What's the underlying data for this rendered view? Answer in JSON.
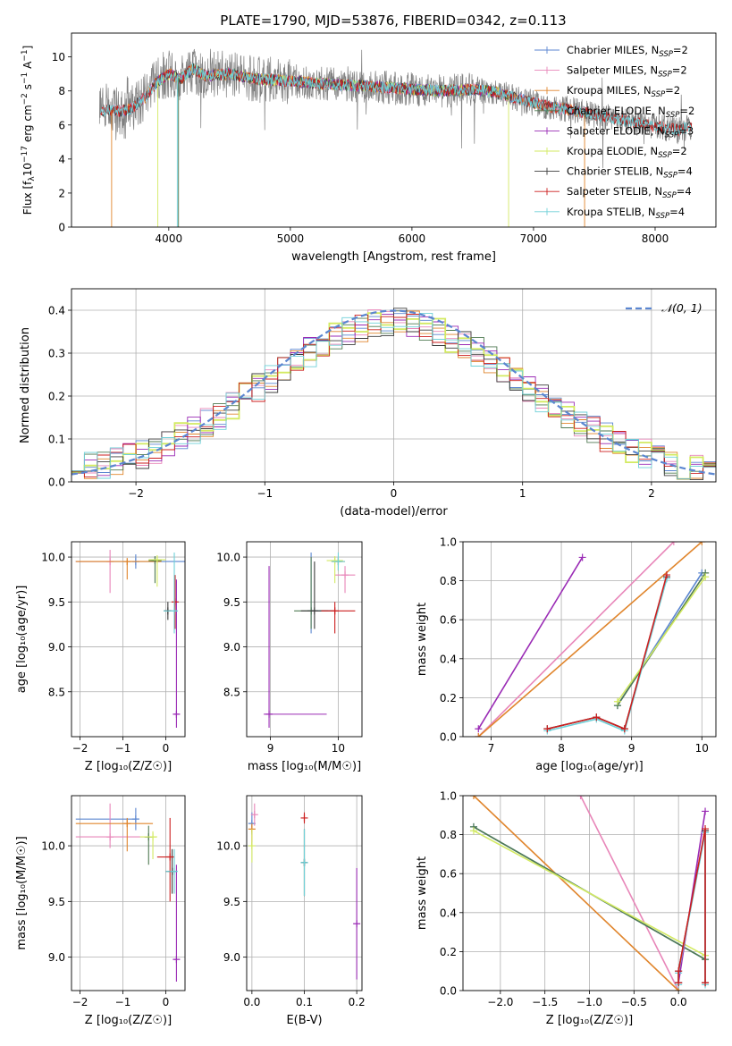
{
  "figure": {
    "suptitle": "PLATE=1790, MJD=53876, FIBERID=0342, z=0.113"
  },
  "colors": {
    "Chabrier MILES": "#5b86d0",
    "Salpeter MILES": "#e886b9",
    "Kroupa MILES": "#e0852c",
    "Chabrier ELODIE": "#4f7a52",
    "Salpeter ELODIE": "#9a2bb5",
    "Kroupa ELODIE": "#d3ea62",
    "Chabrier STELIB": "#3c3c3c",
    "Salpeter STELIB": "#cc1f1f",
    "Kroupa STELIB": "#6fd0d8",
    "data": "#808080",
    "normal": "#5b86d0"
  },
  "chart_data": [
    {
      "id": "spectrum",
      "type": "line",
      "xlabel": "wavelength [Angstrom, rest frame]",
      "ylabel_parts": [
        "Flux [f",
        "λ",
        "10",
        "−17",
        " erg cm",
        "−2",
        " s",
        "−1",
        " A",
        "−1",
        "]"
      ],
      "xlim": [
        3200,
        8500
      ],
      "ylim": [
        0,
        11.4
      ],
      "xticks": [
        4000,
        5000,
        6000,
        7000,
        8000
      ],
      "yticks": [
        0,
        2,
        4,
        6,
        8,
        10
      ],
      "grid": false,
      "legend_position": "right",
      "legend": [
        {
          "model": "Chabrier MILES",
          "pre": "Chabrier MILES, N",
          "sub": "SSP",
          "post": "=2"
        },
        {
          "model": "Salpeter MILES",
          "pre": "Salpeter MILES, N",
          "sub": "SSP",
          "post": "=2"
        },
        {
          "model": "Kroupa MILES",
          "pre": "Kroupa MILES, N",
          "sub": "SSP",
          "post": "=2"
        },
        {
          "model": "Chabrier ELODIE",
          "pre": "Chabrier ELODIE, N",
          "sub": "SSP",
          "post": "=2"
        },
        {
          "model": "Salpeter ELODIE",
          "pre": "Salpeter ELODIE, N",
          "sub": "SSP",
          "post": "=3"
        },
        {
          "model": "Kroupa ELODIE",
          "pre": "Kroupa ELODIE, N",
          "sub": "SSP",
          "post": "=2"
        },
        {
          "model": "Chabrier STELIB",
          "pre": "Chabrier STELIB, N",
          "sub": "SSP",
          "post": "=4"
        },
        {
          "model": "Salpeter STELIB",
          "pre": "Salpeter STELIB, N",
          "sub": "SSP",
          "post": "=4"
        },
        {
          "model": "Kroupa STELIB",
          "pre": "Kroupa STELIB, N",
          "sub": "SSP",
          "post": "=4"
        }
      ],
      "continuum": {
        "x": [
          3430,
          3500,
          3600,
          3700,
          3800,
          3900,
          4000,
          4100,
          4200,
          4300,
          4500,
          4700,
          5000,
          5300,
          5600,
          6000,
          6300,
          6500,
          6700,
          6900,
          7100,
          7300,
          7500,
          7800,
          8000,
          8200,
          8300
        ],
        "y": [
          6.8,
          6.9,
          6.8,
          7.0,
          7.6,
          8.5,
          9.0,
          8.7,
          9.3,
          8.9,
          9.0,
          8.7,
          8.6,
          8.4,
          8.3,
          8.1,
          8.0,
          8.1,
          7.9,
          7.5,
          7.1,
          6.9,
          6.6,
          6.2,
          5.9,
          5.7,
          5.9
        ]
      },
      "model_ranges": {
        "MILES": [
          3540,
          7420
        ],
        "ELODIE": [
          3900,
          6800
        ],
        "STELIB": [
          3440,
          8300
        ]
      },
      "absorption_features": [
        {
          "x": 3530,
          "model": "Kroupa MILES"
        },
        {
          "x": 3910,
          "model": "Kroupa ELODIE"
        },
        {
          "x": 4070,
          "model": "Kroupa STELIB"
        },
        {
          "x": 4080,
          "model": "Chabrier ELODIE"
        },
        {
          "x": 6795,
          "model": "Kroupa ELODIE"
        },
        {
          "x": 7420,
          "model": "Kroupa MILES"
        }
      ]
    },
    {
      "id": "residuals",
      "type": "line",
      "xlabel": "(data-model)/error",
      "ylabel": "Normed distribution",
      "xlim": [
        -2.5,
        2.5
      ],
      "ylim": [
        0,
        0.45
      ],
      "xticks": [
        -2,
        -1,
        0,
        1,
        2
      ],
      "yticks": [
        0.0,
        0.1,
        0.2,
        0.3,
        0.4
      ],
      "grid": true,
      "legend_position": "top-right",
      "legend_label": "𝒩(0, 1)",
      "bin_width": 0.1,
      "normal_curve": {
        "mean": 0,
        "sigma": 1
      }
    },
    {
      "id": "age_vs_Z",
      "type": "scatter",
      "xlabel": "Z [log₁₀(Z/Z☉)]",
      "ylabel": "age  [log₁₀(age/yr)]",
      "xlim": [
        -2.2,
        0.45
      ],
      "ylim": [
        8.0,
        10.17
      ],
      "xticks": [
        -2,
        -1,
        0
      ],
      "yticks": [
        8.5,
        9.0,
        9.5,
        10.0
      ],
      "grid": true,
      "points": [
        {
          "model": "Chabrier MILES",
          "x": -0.7,
          "y": 9.95,
          "xerr": [
            1.4,
            1.4
          ],
          "yerr": [
            0.08,
            0.08
          ]
        },
        {
          "model": "Salpeter MILES",
          "x": -1.3,
          "y": 9.95,
          "xerr": [
            0.8,
            0.0
          ],
          "yerr": [
            0.35,
            0.13
          ]
        },
        {
          "model": "Kroupa MILES",
          "x": -0.9,
          "y": 9.95,
          "xerr": [
            1.2,
            0.8
          ],
          "yerr": [
            0.2,
            0.02
          ]
        },
        {
          "model": "Chabrier ELODIE",
          "x": -0.25,
          "y": 9.96,
          "xerr": [
            0.15,
            0.15
          ],
          "yerr": [
            0.25,
            0.05
          ]
        },
        {
          "model": "Salpeter ELODIE",
          "x": 0.25,
          "y": 8.25,
          "xerr": [
            0.05,
            0.05
          ],
          "yerr": [
            0.15,
            1.5
          ]
        },
        {
          "model": "Kroupa ELODIE",
          "x": -0.2,
          "y": 9.97,
          "xerr": [
            0.2,
            0.2
          ],
          "yerr": [
            0.3,
            0.05
          ]
        },
        {
          "model": "Chabrier STELIB",
          "x": 0.05,
          "y": 9.4,
          "xerr": [
            0.1,
            0.1
          ],
          "yerr": [
            0.1,
            0.1
          ]
        },
        {
          "model": "Salpeter STELIB",
          "x": 0.22,
          "y": 9.5,
          "xerr": [
            0.05,
            0.05
          ],
          "yerr": [
            0.3,
            0.3
          ]
        },
        {
          "model": "Kroupa STELIB",
          "x": 0.2,
          "y": 9.4,
          "xerr": [
            0.25,
            0.05
          ],
          "yerr": [
            0.25,
            0.65
          ]
        }
      ]
    },
    {
      "id": "age_vs_mass",
      "type": "scatter",
      "xlabel": "mass [log₁₀(M/M☉)]",
      "ylabel": "",
      "xlim": [
        8.65,
        10.35
      ],
      "ylim": [
        8.0,
        10.17
      ],
      "xticks": [
        9,
        10
      ],
      "yticks": [
        8.5,
        9.0,
        9.5,
        10.0
      ],
      "grid": true,
      "points": [
        {
          "model": "Chabrier MILES",
          "x": 9.6,
          "y": 9.4,
          "xerr": [
            0.0,
            0.3
          ],
          "yerr": [
            0.25,
            0.65
          ]
        },
        {
          "model": "Salpeter MILES",
          "x": 10.1,
          "y": 9.8,
          "xerr": [
            0.15,
            0.15
          ],
          "yerr": [
            0.2,
            0.1
          ]
        },
        {
          "model": "Kroupa MILES",
          "x": 10.0,
          "y": 9.95,
          "xerr": [
            0.1,
            0.1
          ],
          "yerr": [
            0.1,
            0.05
          ]
        },
        {
          "model": "Chabrier ELODIE",
          "x": 9.6,
          "y": 9.4,
          "xerr": [
            0.25,
            0.25
          ],
          "yerr": [
            0.2,
            0.6
          ]
        },
        {
          "model": "Salpeter ELODIE",
          "x": 8.98,
          "y": 8.25,
          "xerr": [
            0.08,
            0.85
          ],
          "yerr": [
            0.15,
            1.65
          ]
        },
        {
          "model": "Kroupa ELODIE",
          "x": 9.95,
          "y": 9.96,
          "xerr": [
            0.12,
            0.12
          ],
          "yerr": [
            0.25,
            0.05
          ]
        },
        {
          "model": "Chabrier STELIB",
          "x": 9.65,
          "y": 9.4,
          "xerr": [
            0.2,
            0.3
          ],
          "yerr": [
            0.2,
            0.55
          ]
        },
        {
          "model": "Salpeter STELIB",
          "x": 9.95,
          "y": 9.4,
          "xerr": [
            0.2,
            0.3
          ],
          "yerr": [
            0.25,
            0.1
          ]
        },
        {
          "model": "Kroupa STELIB",
          "x": 10.0,
          "y": 9.95,
          "xerr": [
            0.1,
            0.1
          ],
          "yerr": [
            0.1,
            0.1
          ]
        }
      ]
    },
    {
      "id": "weight_vs_age",
      "type": "line",
      "xlabel": "age  [log₁₀(age/yr)]",
      "ylabel": "mass weight",
      "xlim": [
        6.6,
        10.2
      ],
      "ylim": [
        0,
        1
      ],
      "xticks": [
        7,
        8,
        9,
        10
      ],
      "yticks": [
        0.0,
        0.2,
        0.4,
        0.6,
        0.8,
        1.0
      ],
      "grid": true,
      "series": [
        {
          "model": "Salpeter ELODIE",
          "x": [
            6.82,
            8.3
          ],
          "y": [
            0.04,
            0.92
          ]
        },
        {
          "model": "Salpeter MILES",
          "x": [
            6.82,
            9.6
          ],
          "y": [
            0.0,
            1.0
          ]
        },
        {
          "model": "Kroupa MILES",
          "x": [
            6.82,
            10.0
          ],
          "y": [
            0.0,
            1.0
          ]
        },
        {
          "model": "Chabrier MILES",
          "x": [
            8.8,
            10.0
          ],
          "y": [
            0.16,
            0.84
          ]
        },
        {
          "model": "Chabrier ELODIE",
          "x": [
            8.8,
            10.05
          ],
          "y": [
            0.16,
            0.84
          ]
        },
        {
          "model": "Kroupa ELODIE",
          "x": [
            8.8,
            10.05
          ],
          "y": [
            0.18,
            0.82
          ]
        },
        {
          "model": "Chabrier STELIB",
          "x": [
            7.8,
            8.5,
            8.9,
            9.5
          ],
          "y": [
            0.04,
            0.1,
            0.04,
            0.82
          ]
        },
        {
          "model": "Kroupa STELIB",
          "x": [
            7.8,
            8.5,
            8.9,
            9.5
          ],
          "y": [
            0.03,
            0.09,
            0.03,
            0.81
          ]
        },
        {
          "model": "Salpeter STELIB",
          "x": [
            7.8,
            8.5,
            8.9,
            9.5
          ],
          "y": [
            0.04,
            0.1,
            0.04,
            0.83
          ]
        }
      ]
    },
    {
      "id": "mass_vs_Z",
      "type": "scatter",
      "xlabel": "Z [log₁₀(Z/Z☉)]",
      "ylabel": "mass [log₁₀(M/M☉)]",
      "xlim": [
        -2.2,
        0.45
      ],
      "ylim": [
        8.7,
        10.45
      ],
      "xticks": [
        -2,
        -1,
        0
      ],
      "yticks": [
        9.0,
        9.5,
        10.0
      ],
      "grid": true,
      "points": [
        {
          "model": "Chabrier MILES",
          "x": -0.7,
          "y": 10.24,
          "xerr": [
            1.4,
            0.0
          ],
          "yerr": [
            0.1,
            0.1
          ]
        },
        {
          "model": "Salpeter MILES",
          "x": -1.3,
          "y": 10.08,
          "xerr": [
            0.8,
            0.9
          ],
          "yerr": [
            0.1,
            0.3
          ]
        },
        {
          "model": "Kroupa MILES",
          "x": -0.9,
          "y": 10.2,
          "xerr": [
            1.2,
            0.6
          ],
          "yerr": [
            0.25,
            0.05
          ]
        },
        {
          "model": "Chabrier ELODIE",
          "x": -0.4,
          "y": 10.08,
          "xerr": [
            0.1,
            0.1
          ],
          "yerr": [
            0.25,
            0.1
          ]
        },
        {
          "model": "Salpeter ELODIE",
          "x": 0.25,
          "y": 8.98,
          "xerr": [
            0.05,
            0.0
          ],
          "yerr": [
            0.2,
            0.85
          ]
        },
        {
          "model": "Kroupa ELODIE",
          "x": -0.3,
          "y": 10.08,
          "xerr": [
            0.3,
            0.1
          ],
          "yerr": [
            0.2,
            0.05
          ]
        },
        {
          "model": "Chabrier STELIB",
          "x": 0.15,
          "y": 9.77,
          "xerr": [
            0.15,
            0.1
          ],
          "yerr": [
            0.2,
            0.2
          ]
        },
        {
          "model": "Salpeter STELIB",
          "x": 0.1,
          "y": 9.9,
          "xerr": [
            0.3,
            0.1
          ],
          "yerr": [
            0.4,
            0.35
          ]
        },
        {
          "model": "Kroupa STELIB",
          "x": 0.2,
          "y": 9.77,
          "xerr": [
            0.2,
            0.05
          ],
          "yerr": [
            0.2,
            0.2
          ]
        }
      ]
    },
    {
      "id": "mass_vs_ebv",
      "type": "scatter",
      "xlabel": "E(B-V)",
      "ylabel": "",
      "xlim": [
        -0.01,
        0.21
      ],
      "ylim": [
        8.7,
        10.45
      ],
      "xticks": [
        0.0,
        0.1,
        0.2
      ],
      "yticks": [
        9.0,
        9.5,
        10.0
      ],
      "grid": true,
      "points": [
        {
          "model": "Chabrier MILES",
          "x": 0.0,
          "y": 10.2,
          "xerr": [
            0,
            0
          ],
          "yerr": [
            0.1,
            0.1
          ]
        },
        {
          "model": "Salpeter MILES",
          "x": 0.005,
          "y": 10.28,
          "xerr": [
            0,
            0
          ],
          "yerr": [
            0.1,
            0.1
          ]
        },
        {
          "model": "Kroupa MILES",
          "x": 0.0,
          "y": 10.15,
          "xerr": [
            0,
            0
          ],
          "yerr": [
            0.15,
            0.05
          ]
        },
        {
          "model": "Chabrier ELODIE",
          "x": 0.1,
          "y": 9.85,
          "xerr": [
            0,
            0
          ],
          "yerr": [
            0.3,
            0.3
          ]
        },
        {
          "model": "Salpeter ELODIE",
          "x": 0.2,
          "y": 9.3,
          "xerr": [
            0,
            0
          ],
          "yerr": [
            0.5,
            0.5
          ]
        },
        {
          "model": "Kroupa ELODIE",
          "x": 0.0,
          "y": 10.0,
          "xerr": [
            0,
            0
          ],
          "yerr": [
            0.15,
            0.15
          ]
        },
        {
          "model": "Chabrier STELIB",
          "x": 0.1,
          "y": 9.85,
          "xerr": [
            0,
            0
          ],
          "yerr": [
            0.3,
            0.3
          ]
        },
        {
          "model": "Salpeter STELIB",
          "x": 0.1,
          "y": 10.25,
          "xerr": [
            0,
            0
          ],
          "yerr": [
            0.05,
            0.05
          ]
        },
        {
          "model": "Kroupa STELIB",
          "x": 0.1,
          "y": 9.85,
          "xerr": [
            0,
            0
          ],
          "yerr": [
            0.3,
            0.3
          ]
        }
      ]
    },
    {
      "id": "weight_vs_Z",
      "type": "line",
      "xlabel": "Z [log₁₀(Z/Z☉)]",
      "ylabel": "mass weight",
      "xlim": [
        -2.42,
        0.42
      ],
      "ylim": [
        0,
        1
      ],
      "xticks": [
        -2.0,
        -1.5,
        -1.0,
        -0.5,
        0.0
      ],
      "yticks": [
        0.0,
        0.2,
        0.4,
        0.6,
        0.8,
        1.0
      ],
      "grid": true,
      "series": [
        {
          "model": "Salpeter MILES",
          "x": [
            -1.1,
            0.0
          ],
          "y": [
            1.0,
            0.0
          ]
        },
        {
          "model": "Kroupa MILES",
          "x": [
            -2.3,
            0.0
          ],
          "y": [
            1.0,
            0.0
          ]
        },
        {
          "model": "Chabrier MILES",
          "x": [
            -2.3,
            0.3
          ],
          "y": [
            0.84,
            0.16
          ]
        },
        {
          "model": "Chabrier ELODIE",
          "x": [
            -2.3,
            0.3
          ],
          "y": [
            0.84,
            0.16
          ]
        },
        {
          "model": "Kroupa ELODIE",
          "x": [
            -2.3,
            0.3
          ],
          "y": [
            0.82,
            0.18
          ]
        },
        {
          "model": "Salpeter ELODIE",
          "x": [
            0.0,
            0.3
          ],
          "y": [
            0.04,
            0.92
          ]
        },
        {
          "model": "Chabrier STELIB",
          "x": [
            0.0,
            0.0,
            0.3,
            0.3
          ],
          "y": [
            0.04,
            0.1,
            0.82,
            0.04
          ]
        },
        {
          "model": "Kroupa STELIB",
          "x": [
            0.0,
            0.0,
            0.3,
            0.3
          ],
          "y": [
            0.03,
            0.09,
            0.81,
            0.03
          ]
        },
        {
          "model": "Salpeter STELIB",
          "x": [
            0.0,
            0.0,
            0.3,
            0.3
          ],
          "y": [
            0.04,
            0.1,
            0.83,
            0.04
          ]
        }
      ]
    }
  ]
}
